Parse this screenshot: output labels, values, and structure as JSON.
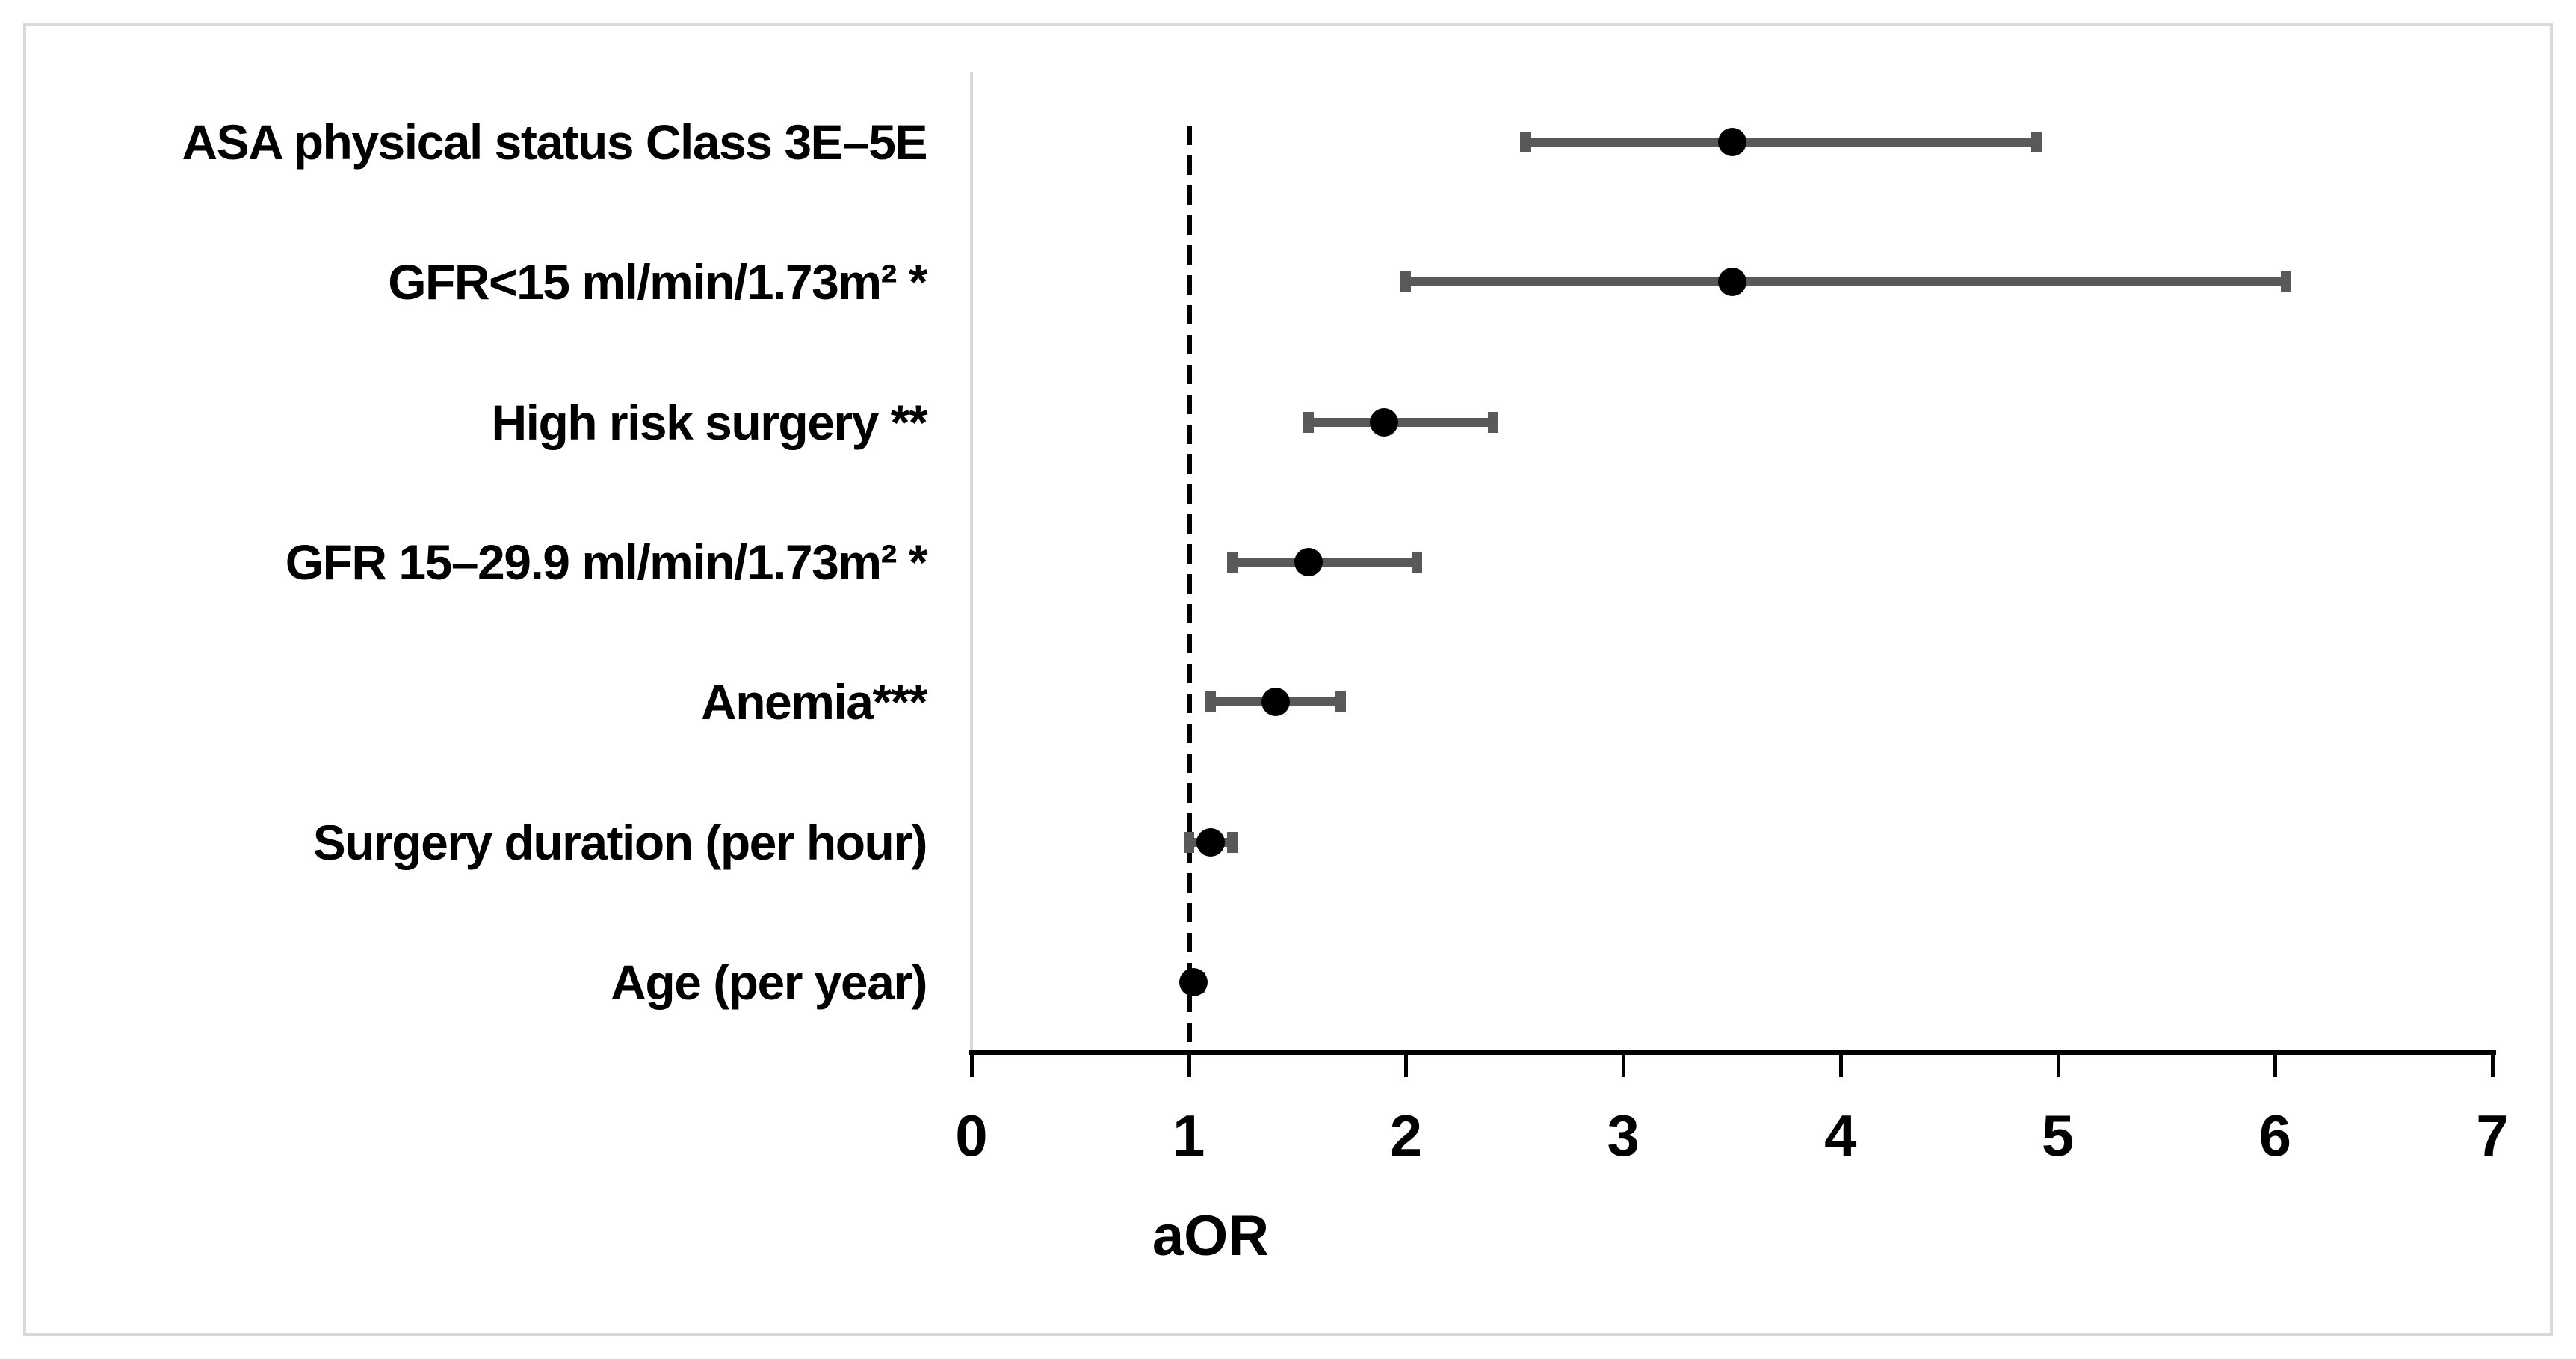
{
  "figure": {
    "background_color": "#ffffff",
    "border_color": "#d9d9d9"
  },
  "chart_data": {
    "type": "scatter",
    "subtype": "forest-plot",
    "title": "",
    "xlabel": "aOR",
    "ylabel": "",
    "xlim": [
      0,
      7
    ],
    "xticks": [
      0,
      1,
      2,
      3,
      4,
      5,
      6,
      7
    ],
    "reference_line_x": 1,
    "grid": false,
    "legend": false,
    "point_color": "#000000",
    "ci_color": "#595959",
    "axis_color": "#000000",
    "y_axis_line_color": "#d9d9d9",
    "rows": [
      {
        "label": "ASA physical status Class 3E–5E",
        "aOR": 3.5,
        "ci_low": 2.55,
        "ci_high": 4.9
      },
      {
        "label": "GFR<15 ml/min/1.73m² *",
        "aOR": 3.5,
        "ci_low": 2.0,
        "ci_high": 6.05
      },
      {
        "label": "High risk surgery **",
        "aOR": 1.9,
        "ci_low": 1.55,
        "ci_high": 2.4
      },
      {
        "label": "GFR 15–29.9 ml/min/1.73m² *",
        "aOR": 1.55,
        "ci_low": 1.2,
        "ci_high": 2.05
      },
      {
        "label": "Anemia***",
        "aOR": 1.4,
        "ci_low": 1.1,
        "ci_high": 1.7
      },
      {
        "label": "Surgery duration (per hour)",
        "aOR": 1.1,
        "ci_low": 1.0,
        "ci_high": 1.2
      },
      {
        "label": "Age (per year)",
        "aOR": 1.02,
        "ci_low": 1.0,
        "ci_high": 1.05
      }
    ]
  }
}
